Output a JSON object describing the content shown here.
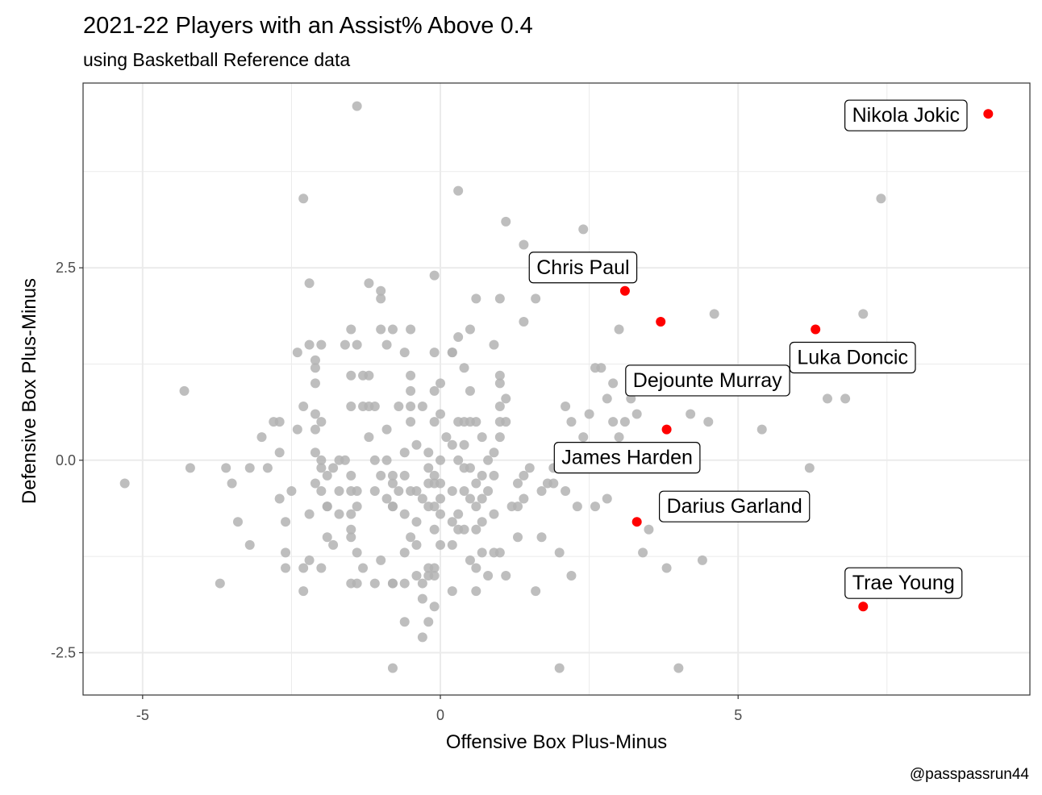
{
  "chart_data": {
    "type": "scatter",
    "title": "2021-22 Players with an Assist% Above 0.4",
    "subtitle": "using Basketball Reference data",
    "xlabel": "Offensive Box Plus-Minus",
    "ylabel": "Defensive Box Plus-Minus",
    "caption": "@passpassrun44",
    "xlim": [
      -6.0,
      9.9
    ],
    "ylim": [
      -3.05,
      4.9
    ],
    "x_ticks": [
      -5,
      0,
      5
    ],
    "x_tick_labels": [
      "-5",
      "0",
      "5"
    ],
    "y_ticks": [
      -2.5,
      0,
      2.5
    ],
    "y_tick_labels": [
      "-2.5",
      "0.0",
      "2.5"
    ],
    "grid": true,
    "colors": {
      "background_points": "#b3b3b3",
      "highlight_points": "#ff0000",
      "grid": "#ebebeb",
      "panel_border": "#333333"
    },
    "series": [
      {
        "points": [
          [
            -5.3,
            -0.3
          ],
          [
            -4.3,
            0.9
          ],
          [
            -4.2,
            -0.1
          ],
          [
            -3.7,
            -1.6
          ],
          [
            -3.6,
            -0.1
          ],
          [
            -3.5,
            -0.3
          ],
          [
            -3.4,
            -0.8
          ],
          [
            -3.2,
            -1.1
          ],
          [
            -3.2,
            -0.1
          ],
          [
            -3.0,
            0.3
          ],
          [
            -2.9,
            -0.1
          ],
          [
            -2.8,
            0.5
          ],
          [
            -2.7,
            0.5
          ],
          [
            -2.7,
            -0.5
          ],
          [
            -2.7,
            0.1
          ],
          [
            -2.6,
            -0.8
          ],
          [
            -2.6,
            -1.2
          ],
          [
            -2.6,
            -1.4
          ],
          [
            -2.5,
            -0.4
          ],
          [
            -2.4,
            1.4
          ],
          [
            -2.4,
            0.4
          ],
          [
            -2.3,
            3.4
          ],
          [
            -2.3,
            0.7
          ],
          [
            -2.3,
            -1.4
          ],
          [
            -2.3,
            -1.7
          ],
          [
            -2.2,
            2.3
          ],
          [
            -2.2,
            1.5
          ],
          [
            -2.2,
            -0.7
          ],
          [
            -2.2,
            -1.3
          ],
          [
            -2.1,
            0.6
          ],
          [
            -2.1,
            0.4
          ],
          [
            -2.1,
            0.1
          ],
          [
            -2.1,
            -0.3
          ],
          [
            -2.1,
            1.3
          ],
          [
            -2.1,
            1.2
          ],
          [
            -2.1,
            1.0
          ],
          [
            -2.0,
            1.5
          ],
          [
            -2.0,
            0.5
          ],
          [
            -2.0,
            0.0
          ],
          [
            -2.0,
            -0.1
          ],
          [
            -2.0,
            -0.4
          ],
          [
            -2.0,
            -1.4
          ],
          [
            -1.9,
            -0.2
          ],
          [
            -1.9,
            -0.6
          ],
          [
            -1.9,
            -0.6
          ],
          [
            -1.9,
            -1.0
          ],
          [
            -1.8,
            -0.1
          ],
          [
            -1.8,
            -1.1
          ],
          [
            -1.7,
            0.0
          ],
          [
            -1.7,
            -0.4
          ],
          [
            -1.7,
            -0.7
          ],
          [
            -1.6,
            1.5
          ],
          [
            -1.6,
            0.0
          ],
          [
            -1.5,
            1.7
          ],
          [
            -1.5,
            1.1
          ],
          [
            -1.5,
            -0.2
          ],
          [
            -1.5,
            -0.4
          ],
          [
            -1.5,
            -0.7
          ],
          [
            -1.5,
            -1.6
          ],
          [
            -1.5,
            -1.0
          ],
          [
            -1.5,
            -0.9
          ],
          [
            -1.5,
            0.7
          ],
          [
            -1.4,
            1.5
          ],
          [
            -1.4,
            4.6
          ],
          [
            -1.4,
            -1.6
          ],
          [
            -1.4,
            -1.2
          ],
          [
            -1.4,
            -0.4
          ],
          [
            -1.4,
            -0.6
          ],
          [
            -1.3,
            1.1
          ],
          [
            -1.3,
            0.7
          ],
          [
            -1.3,
            -1.4
          ],
          [
            -1.2,
            2.3
          ],
          [
            -1.2,
            1.1
          ],
          [
            -1.2,
            0.7
          ],
          [
            -1.2,
            0.3
          ],
          [
            -1.1,
            -0.4
          ],
          [
            -1.1,
            -1.6
          ],
          [
            -1.1,
            0.7
          ],
          [
            -1.1,
            0.0
          ],
          [
            -1.0,
            2.2
          ],
          [
            -1.0,
            2.1
          ],
          [
            -1.0,
            1.7
          ],
          [
            -1.0,
            -0.2
          ],
          [
            -1.0,
            -1.3
          ],
          [
            -0.9,
            1.5
          ],
          [
            -0.9,
            0.4
          ],
          [
            -0.9,
            0.0
          ],
          [
            -0.9,
            -0.5
          ],
          [
            -0.8,
            -0.6
          ],
          [
            -0.8,
            -0.6
          ],
          [
            -0.8,
            -0.2
          ],
          [
            -0.8,
            -0.3
          ],
          [
            -0.8,
            -1.6
          ],
          [
            -0.8,
            -1.6
          ],
          [
            -0.8,
            -2.7
          ],
          [
            -0.8,
            1.7
          ],
          [
            -0.7,
            0.7
          ],
          [
            -0.7,
            -0.4
          ],
          [
            -0.6,
            1.4
          ],
          [
            -0.6,
            0.1
          ],
          [
            -0.6,
            -0.2
          ],
          [
            -0.6,
            -0.7
          ],
          [
            -0.6,
            -1.2
          ],
          [
            -0.6,
            -1.6
          ],
          [
            -0.6,
            -2.1
          ],
          [
            -0.5,
            1.7
          ],
          [
            -0.5,
            1.1
          ],
          [
            -0.5,
            0.9
          ],
          [
            -0.5,
            0.7
          ],
          [
            -0.5,
            0.5
          ],
          [
            -0.5,
            -0.4
          ],
          [
            -0.5,
            -1.0
          ],
          [
            -0.4,
            0.2
          ],
          [
            -0.4,
            -0.4
          ],
          [
            -0.4,
            -0.8
          ],
          [
            -0.4,
            -1.1
          ],
          [
            -0.4,
            -1.5
          ],
          [
            -0.3,
            0.7
          ],
          [
            -0.3,
            -0.5
          ],
          [
            -0.3,
            -1.6
          ],
          [
            -0.3,
            -1.8
          ],
          [
            -0.3,
            -2.3
          ],
          [
            -0.2,
            0.1
          ],
          [
            -0.2,
            -0.1
          ],
          [
            -0.2,
            -0.6
          ],
          [
            -0.2,
            -0.3
          ],
          [
            -0.2,
            -1.4
          ],
          [
            -0.2,
            -1.5
          ],
          [
            -0.2,
            -2.1
          ],
          [
            -0.1,
            1.4
          ],
          [
            -0.1,
            0.9
          ],
          [
            -0.1,
            0.5
          ],
          [
            -0.1,
            -0.2
          ],
          [
            -0.1,
            -0.3
          ],
          [
            -0.1,
            -0.6
          ],
          [
            -0.1,
            -0.9
          ],
          [
            -0.1,
            -1.4
          ],
          [
            -0.1,
            -1.5
          ],
          [
            -0.1,
            -1.9
          ],
          [
            0.0,
            1.0
          ],
          [
            0.0,
            0.6
          ],
          [
            0.0,
            0.0
          ],
          [
            0.0,
            -0.3
          ],
          [
            0.0,
            -0.5
          ],
          [
            0.0,
            -0.7
          ],
          [
            0.0,
            -1.1
          ],
          [
            -0.1,
            2.4
          ],
          [
            0.1,
            0.3
          ],
          [
            0.2,
            1.4
          ],
          [
            0.2,
            1.4
          ],
          [
            0.2,
            0.2
          ],
          [
            0.2,
            -0.4
          ],
          [
            0.2,
            -0.8
          ],
          [
            0.2,
            -1.1
          ],
          [
            0.2,
            -1.7
          ],
          [
            0.3,
            3.5
          ],
          [
            0.3,
            1.6
          ],
          [
            0.3,
            0.5
          ],
          [
            0.3,
            0.0
          ],
          [
            0.3,
            -0.7
          ],
          [
            0.3,
            -0.9
          ],
          [
            0.4,
            1.2
          ],
          [
            0.4,
            0.5
          ],
          [
            0.4,
            0.2
          ],
          [
            0.4,
            -0.1
          ],
          [
            0.4,
            -0.4
          ],
          [
            0.4,
            -0.9
          ],
          [
            0.5,
            1.7
          ],
          [
            0.5,
            0.9
          ],
          [
            0.5,
            0.5
          ],
          [
            0.5,
            -0.1
          ],
          [
            0.5,
            -0.5
          ],
          [
            0.5,
            -1.3
          ],
          [
            0.6,
            2.1
          ],
          [
            0.6,
            0.5
          ],
          [
            0.6,
            -0.3
          ],
          [
            0.6,
            -0.6
          ],
          [
            0.6,
            -0.9
          ],
          [
            0.6,
            -1.4
          ],
          [
            0.6,
            -1.7
          ],
          [
            0.7,
            0.3
          ],
          [
            0.7,
            -0.2
          ],
          [
            0.7,
            -0.5
          ],
          [
            0.7,
            -0.8
          ],
          [
            0.7,
            -1.2
          ],
          [
            0.8,
            0.0
          ],
          [
            0.8,
            -0.4
          ],
          [
            0.8,
            -1.5
          ],
          [
            0.9,
            1.5
          ],
          [
            0.9,
            0.1
          ],
          [
            0.9,
            -0.2
          ],
          [
            0.9,
            -0.7
          ],
          [
            0.9,
            -1.2
          ],
          [
            1.0,
            2.1
          ],
          [
            1.0,
            1.1
          ],
          [
            1.0,
            1.0
          ],
          [
            1.0,
            0.7
          ],
          [
            1.0,
            0.5
          ],
          [
            1.0,
            0.3
          ],
          [
            1.0,
            -1.2
          ],
          [
            1.1,
            0.8
          ],
          [
            1.1,
            0.5
          ],
          [
            1.1,
            -1.5
          ],
          [
            1.1,
            3.1
          ],
          [
            1.2,
            -0.6
          ],
          [
            1.3,
            -0.6
          ],
          [
            1.3,
            -0.3
          ],
          [
            1.3,
            -1.0
          ],
          [
            1.4,
            2.8
          ],
          [
            1.4,
            1.8
          ],
          [
            1.4,
            -0.5
          ],
          [
            1.4,
            -0.2
          ],
          [
            1.5,
            -0.1
          ],
          [
            1.6,
            2.1
          ],
          [
            1.6,
            -1.7
          ],
          [
            1.7,
            -1.0
          ],
          [
            1.7,
            -0.4
          ],
          [
            1.8,
            -0.3
          ],
          [
            1.9,
            -0.3
          ],
          [
            1.9,
            -0.1
          ],
          [
            2.0,
            -1.2
          ],
          [
            2.0,
            -2.7
          ],
          [
            2.1,
            0.7
          ],
          [
            2.1,
            -0.4
          ],
          [
            2.2,
            0.5
          ],
          [
            2.2,
            -1.5
          ],
          [
            2.3,
            -0.6
          ],
          [
            2.4,
            3.0
          ],
          [
            2.4,
            0.3
          ],
          [
            2.5,
            0.6
          ],
          [
            2.6,
            1.2
          ],
          [
            2.6,
            -0.6
          ],
          [
            2.7,
            1.2
          ],
          [
            2.8,
            0.8
          ],
          [
            2.8,
            -0.5
          ],
          [
            2.9,
            1.0
          ],
          [
            2.9,
            0.5
          ],
          [
            3.0,
            1.7
          ],
          [
            3.0,
            0.3
          ],
          [
            3.1,
            0.5
          ],
          [
            3.2,
            0.8
          ],
          [
            3.3,
            0.6
          ],
          [
            3.4,
            -1.2
          ],
          [
            3.5,
            -0.9
          ],
          [
            3.8,
            -1.4
          ],
          [
            4.0,
            -2.7
          ],
          [
            4.2,
            0.6
          ],
          [
            4.4,
            -1.3
          ],
          [
            4.5,
            0.5
          ],
          [
            4.6,
            1.9
          ],
          [
            5.4,
            0.4
          ],
          [
            6.2,
            -0.1
          ],
          [
            6.5,
            0.8
          ],
          [
            6.8,
            0.8
          ],
          [
            7.1,
            1.9
          ],
          [
            7.4,
            3.4
          ]
        ]
      },
      {
        "points": [
          {
            "name": "Nikola Jokic",
            "x": 9.2,
            "y": 4.5
          },
          {
            "name": "Chris Paul",
            "x": 3.1,
            "y": 2.2
          },
          {
            "name": "Dejounte Murray",
            "x": 3.7,
            "y": 1.8
          },
          {
            "name": "Luka Doncic",
            "x": 6.3,
            "y": 1.7
          },
          {
            "name": "James Harden",
            "x": 3.8,
            "y": 0.4
          },
          {
            "name": "Darius Garland",
            "x": 3.3,
            "y": -0.8
          },
          {
            "name": "Trae Young",
            "x": 7.1,
            "y": -1.9
          }
        ]
      }
    ]
  }
}
